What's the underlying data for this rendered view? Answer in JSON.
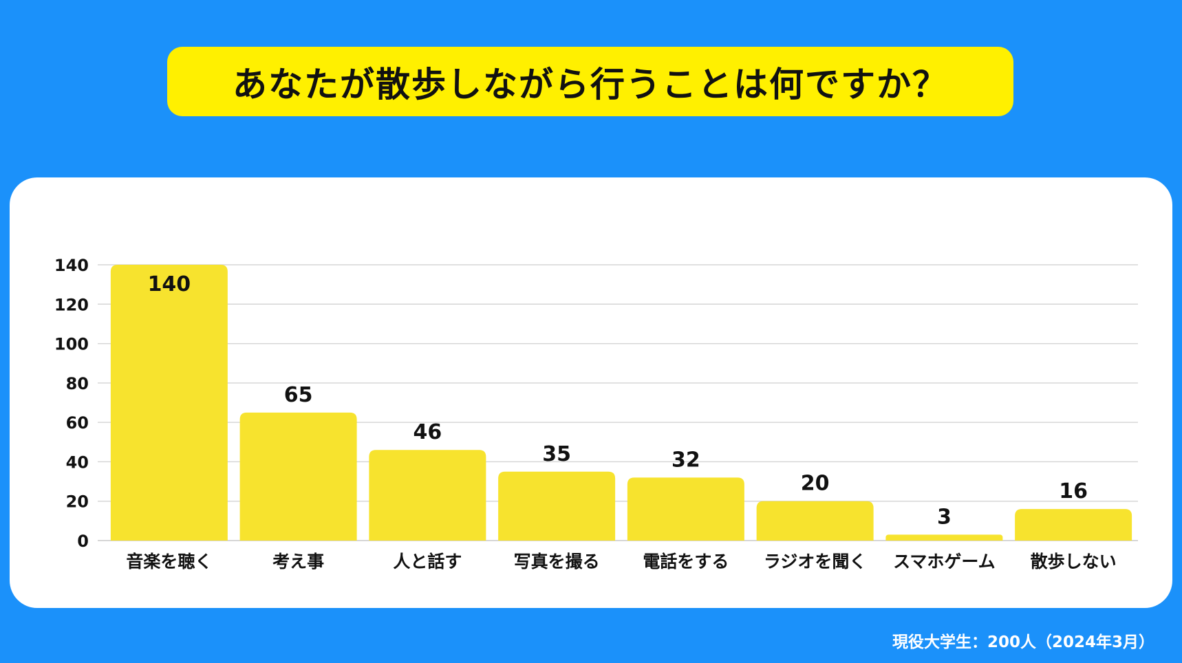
{
  "title": "あなたが散歩しながら行うことは何ですか？",
  "footnote": "現役大学生：200人（2024年3月）",
  "colors": {
    "background": "#1b91fa",
    "title_box": "#fff000",
    "panel": "#ffffff",
    "bar": "#f7e32e",
    "grid": "#d6d6d6",
    "text": "#111111"
  },
  "chart_data": {
    "type": "bar",
    "categories": [
      "音楽を聴く",
      "考え事",
      "人と話す",
      "写真を撮る",
      "電話をする",
      "ラジオを聞く",
      "スマホゲーム",
      "散歩しない"
    ],
    "values": [
      140,
      65,
      46,
      35,
      32,
      20,
      3,
      16
    ],
    "ylim": [
      0,
      140
    ],
    "yticks": [
      0,
      20,
      40,
      60,
      80,
      100,
      120,
      140
    ],
    "grid": true,
    "legend": "none",
    "data_labels": true
  }
}
